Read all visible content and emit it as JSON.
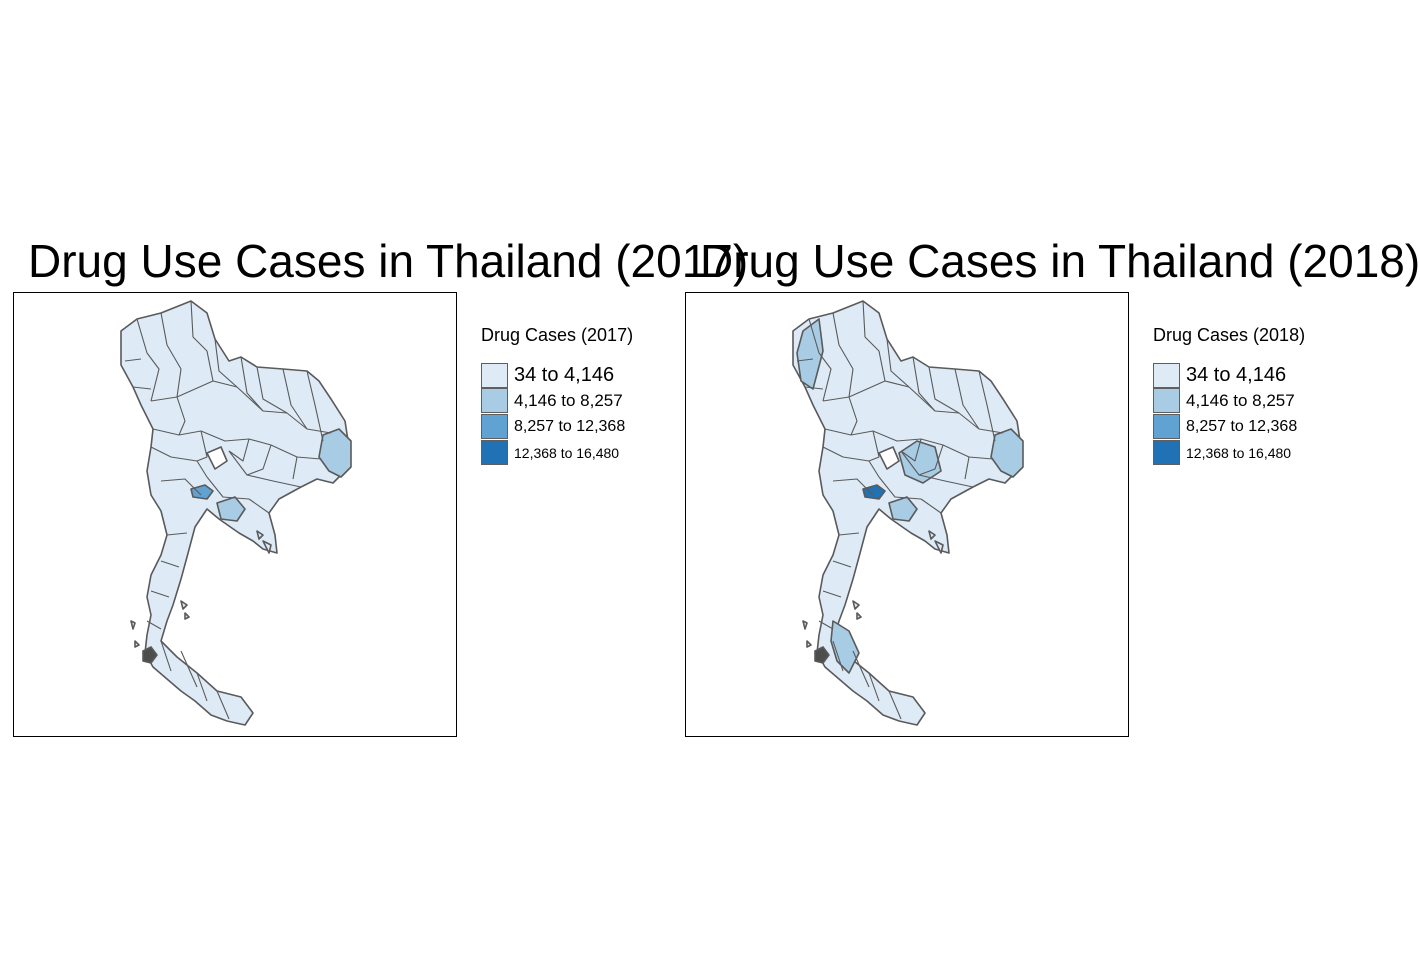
{
  "colors": {
    "class_0": "#deebf7",
    "class_1": "#a9cce5",
    "class_2": "#60a3d3",
    "class_3": "#2171b5",
    "border": "#5a5a5a",
    "dark_island": "#4d4d4d"
  },
  "maps": [
    {
      "title": "Drug Use Cases in Thailand (2017)",
      "legend": {
        "title": "Drug Cases (2017)",
        "items": [
          {
            "label": "34 to 4,146",
            "color": "#deebf7"
          },
          {
            "label": "4,146 to 8,257",
            "color": "#a9cce5"
          },
          {
            "label": "8,257 to 12,368",
            "color": "#60a3d3"
          },
          {
            "label": "12,368 to 16,480",
            "color": "#2171b5"
          }
        ]
      },
      "highlighted_regions": [
        {
          "region": "east-border-province",
          "class": 1
        },
        {
          "region": "eastern-coast-province",
          "class": 1
        },
        {
          "region": "bangkok",
          "class": 2
        }
      ]
    },
    {
      "title": "Drug Use Cases in Thailand (2018)",
      "legend": {
        "title": "Drug Cases (2018)",
        "items": [
          {
            "label": "34 to 4,146",
            "color": "#deebf7"
          },
          {
            "label": "4,146 to 8,257",
            "color": "#a9cce5"
          },
          {
            "label": "8,257 to 12,368",
            "color": "#60a3d3"
          },
          {
            "label": "12,368 to 16,480",
            "color": "#2171b5"
          }
        ]
      },
      "highlighted_regions": [
        {
          "region": "northwest-province",
          "class": 1
        },
        {
          "region": "northeast-central-province",
          "class": 1
        },
        {
          "region": "east-border-province",
          "class": 1
        },
        {
          "region": "eastern-coast-province",
          "class": 1
        },
        {
          "region": "southern-province",
          "class": 1
        },
        {
          "region": "bangkok",
          "class": 3
        }
      ]
    }
  ]
}
